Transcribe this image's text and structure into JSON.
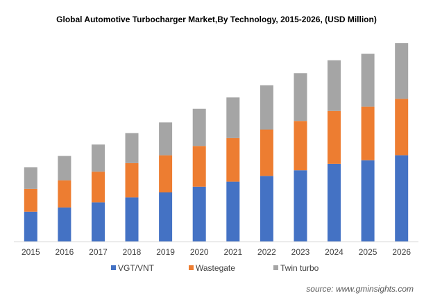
{
  "chart_data": {
    "type": "bar",
    "stacked": true,
    "title": "Global  Automotive Turbocharger  Market,By Technology,  2015-2026, (USD Million)",
    "categories": [
      "2015",
      "2016",
      "2017",
      "2018",
      "2019",
      "2020",
      "2021",
      "2022",
      "2023",
      "2024",
      "2025",
      "2026"
    ],
    "series": [
      {
        "name": "VGT/VNT",
        "color": "#4472C4",
        "values": [
          42,
          48,
          55,
          62,
          69,
          77,
          84,
          92,
          100,
          109,
          114,
          121
        ]
      },
      {
        "name": "Wastegate",
        "color": "#ED7D31",
        "values": [
          32,
          38,
          43,
          48,
          52,
          57,
          61,
          65,
          69,
          74,
          75,
          79
        ]
      },
      {
        "name": "Twin turbo",
        "color": "#A5A5A5",
        "values": [
          30,
          34,
          38,
          42,
          46,
          52,
          57,
          62,
          67,
          71,
          74,
          78
        ]
      }
    ],
    "ylim": [
      0,
      282
    ],
    "grid": false,
    "y_axis_visible": false,
    "legend_position": "bottom",
    "source": "source: www.gminsights.com"
  }
}
